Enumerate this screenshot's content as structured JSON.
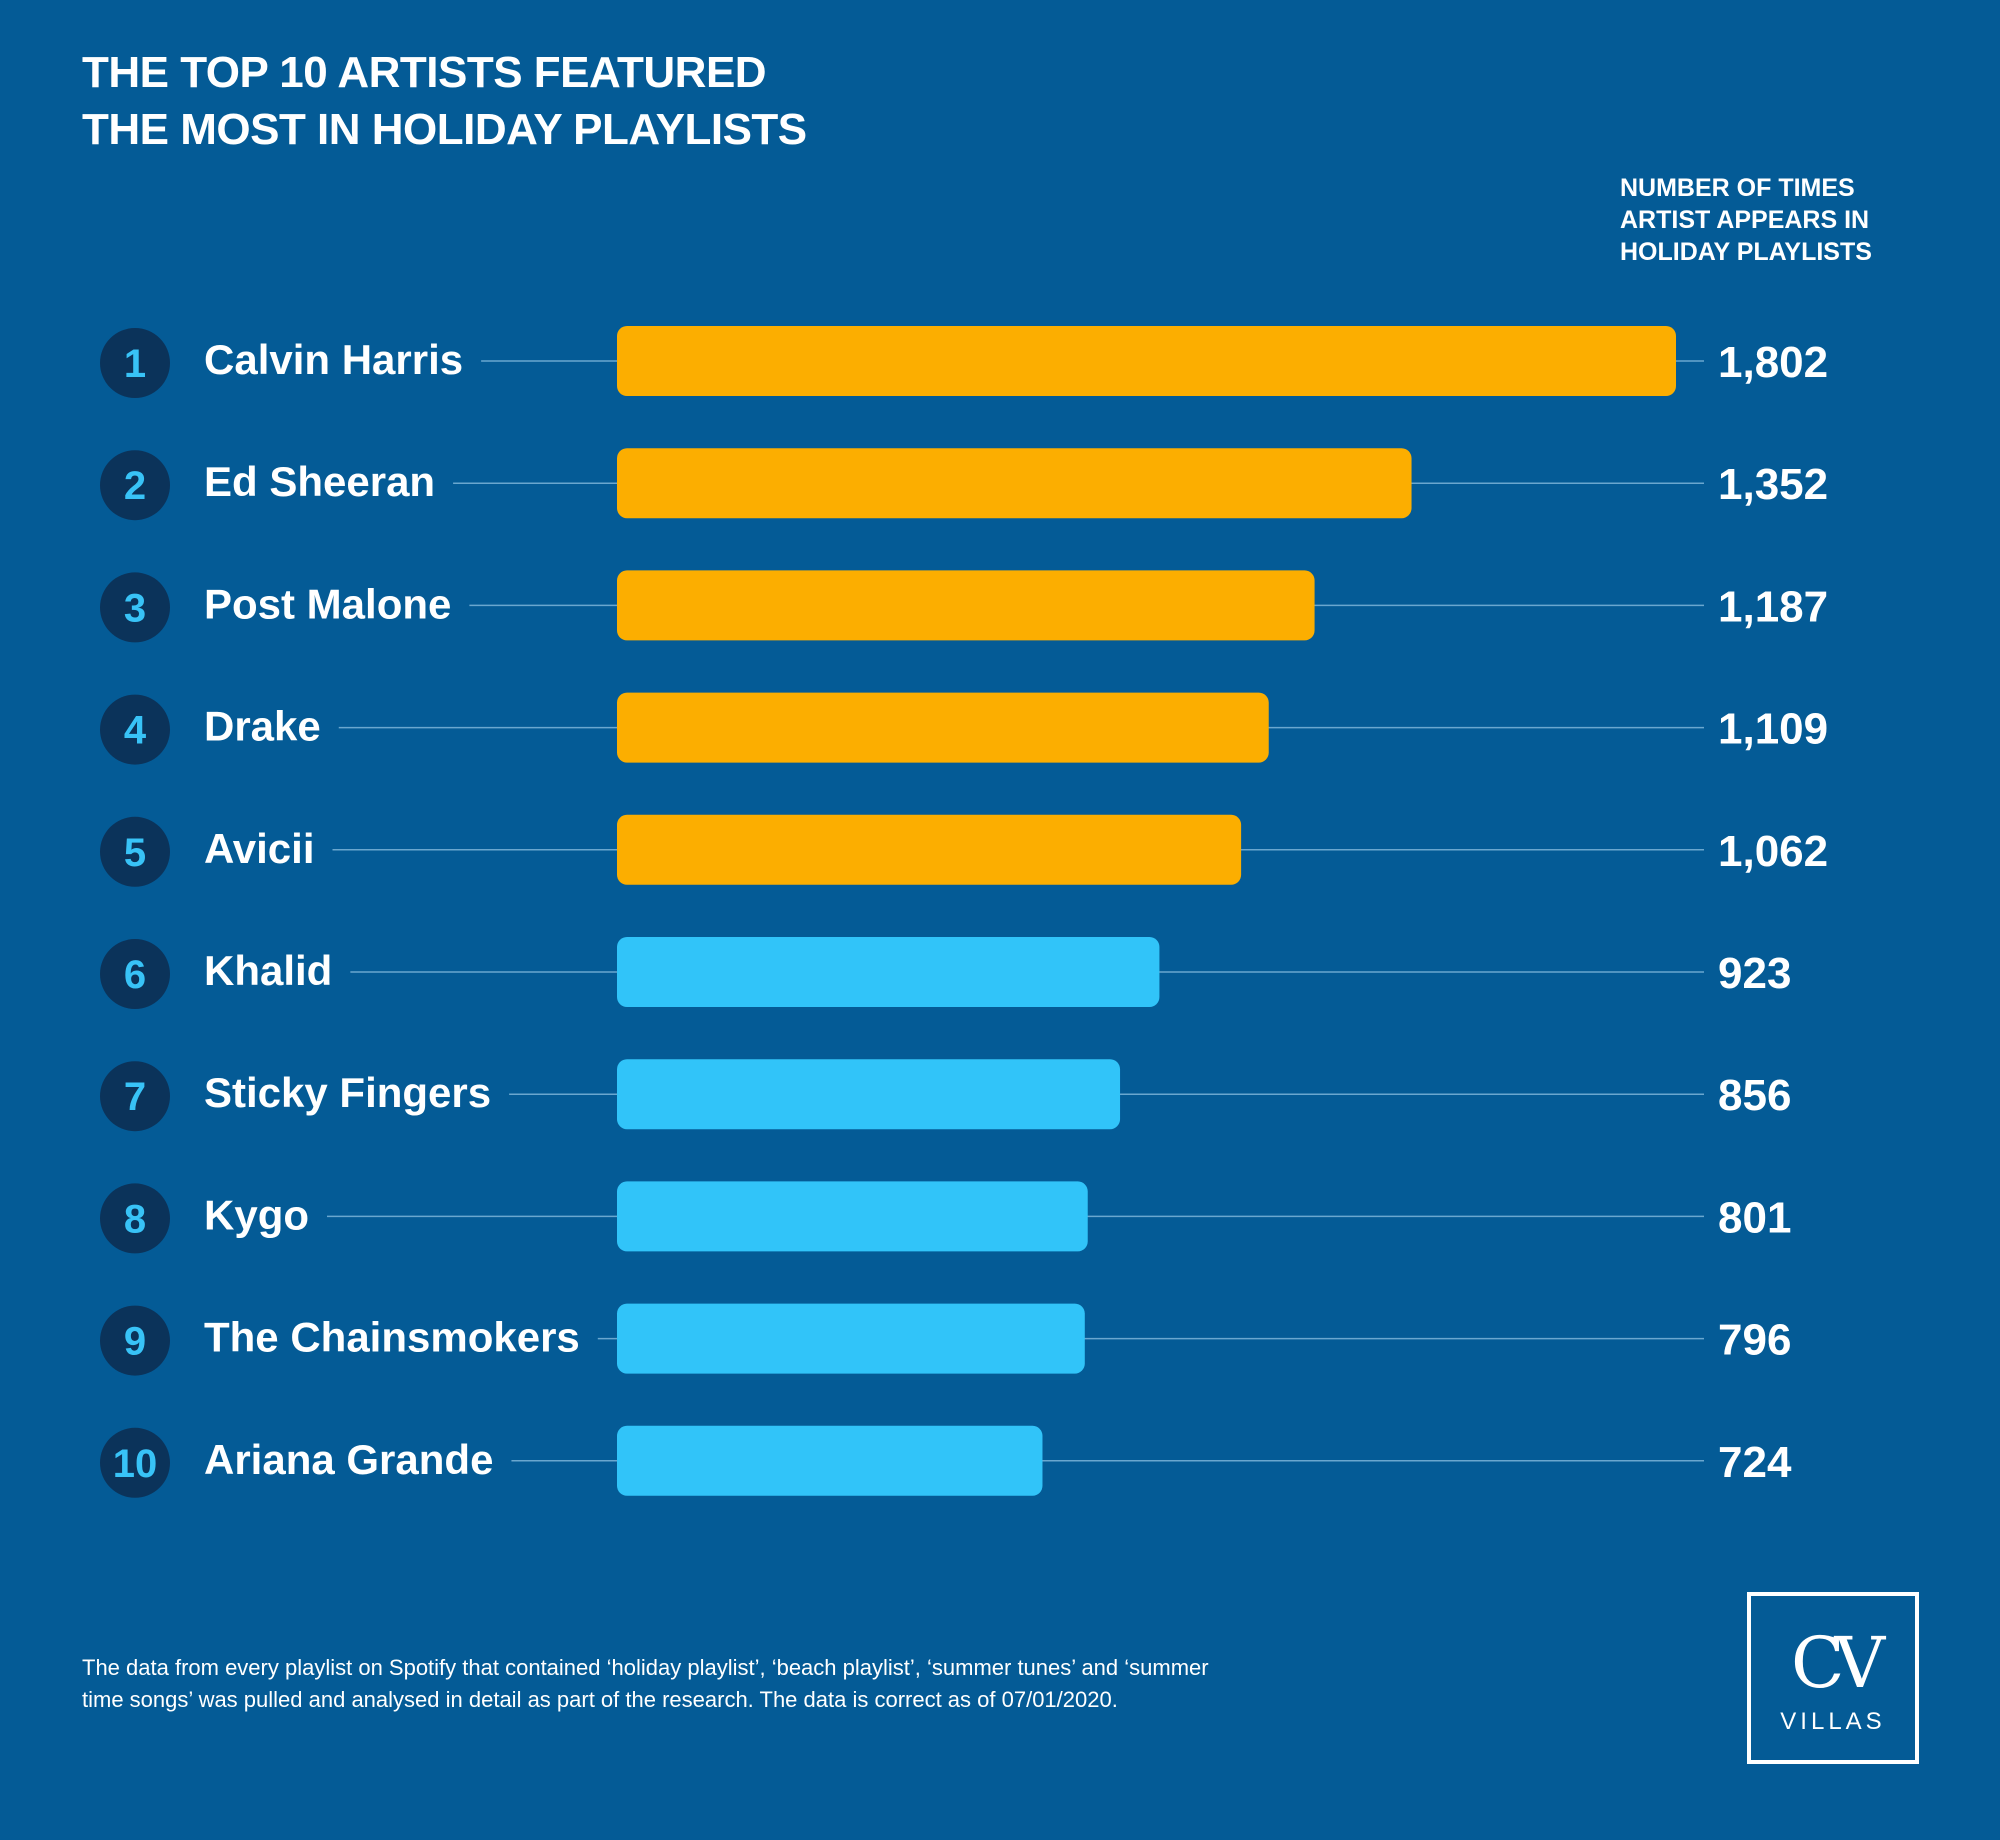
{
  "header": {
    "title_line1": "THE TOP 10 ARTISTS FEATURED",
    "title_line2": "THE MOST IN HOLIDAY PLAYLISTS",
    "column_line1": "NUMBER OF TIMES",
    "column_line2": "ARTIST APPEARS IN",
    "column_line3": "HOLIDAY PLAYLISTS"
  },
  "chart_data": {
    "type": "bar",
    "orientation": "horizontal",
    "categories": [
      "Calvin Harris",
      "Ed Sheeran",
      "Post Malone",
      "Drake",
      "Avicii",
      "Khalid",
      "Sticky Fingers",
      "Kygo",
      "The Chainsmokers",
      "Ariana Grande"
    ],
    "ranks": [
      "1",
      "2",
      "3",
      "4",
      "5",
      "6",
      "7",
      "8",
      "9",
      "10"
    ],
    "values": [
      1802,
      1352,
      1187,
      1109,
      1062,
      923,
      856,
      801,
      796,
      724
    ],
    "value_labels": [
      "1,802",
      "1,352",
      "1,187",
      "1,109",
      "1,062",
      "923",
      "856",
      "801",
      "796",
      "724"
    ],
    "colors": [
      "#fcae00",
      "#fcae00",
      "#fcae00",
      "#fcae00",
      "#fcae00",
      "#31c4f9",
      "#31c4f9",
      "#31c4f9",
      "#31c4f9",
      "#31c4f9"
    ],
    "grid": false
  },
  "footnote": {
    "line1": "The data from every playlist on Spotify that contained ‘holiday playlist’, ‘beach playlist’, ‘summer tunes’ and ‘summer",
    "line2": "time songs’ was pulled and analysed in detail as part of the research. The data is correct as of 07/01/2020."
  },
  "logo": {
    "mark": "CV",
    "word": "VILLAS"
  },
  "colors": {
    "background": "#045b96",
    "rank_circle": "#0b335a",
    "rank_text": "#38c3f7",
    "connector": "#6aa7cf"
  }
}
